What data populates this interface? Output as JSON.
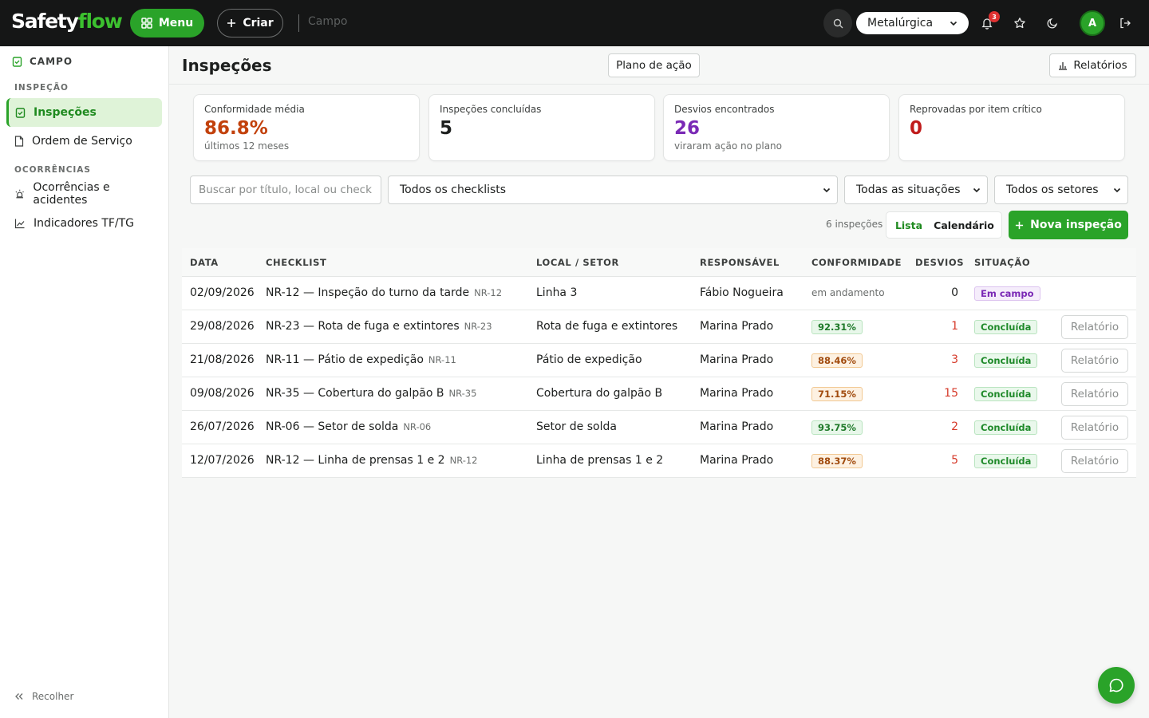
{
  "topbar": {
    "logo_part1": "Safety",
    "logo_part2": "flow",
    "menu_label": "Menu",
    "create_label": "Criar",
    "breadcrumb": "Campo",
    "company_select": "Metalúrgica",
    "notification_count": "3",
    "avatar_initial": "A"
  },
  "sidebar": {
    "header": "CAMPO",
    "section_inspecao": "INSPEÇÃO",
    "item_inspecoes": "Inspeções",
    "item_ordem": "Ordem de Serviço",
    "section_ocorrencias": "OCORRÊNCIAS",
    "item_ocorrencias": "Ocorrências e acidentes",
    "item_indicadores": "Indicadores TF/TG",
    "collapse": "Recolher"
  },
  "header": {
    "title": "Inspeções",
    "plan_button": "Plano de ação",
    "reports_button": "Relatórios"
  },
  "cards": [
    {
      "label": "Conformidade média",
      "value": "86.8%",
      "sub": "últimos 12 meses",
      "color": "#c2410c"
    },
    {
      "label": "Inspeções concluídas",
      "value": "5",
      "sub": "",
      "color": "#1d1f1e"
    },
    {
      "label": "Desvios encontrados",
      "value": "26",
      "sub": "viraram ação no plano",
      "color": "#7a29b5"
    },
    {
      "label": "Reprovadas por item crítico",
      "value": "0",
      "sub": "",
      "color": "#c01c1c"
    }
  ],
  "filters": {
    "search_placeholder": "Buscar por título, local ou checklist",
    "checklist": "Todos os checklists",
    "status": "Todas as situações",
    "sector": "Todos os setores"
  },
  "toolbar": {
    "count": "6 inspeções",
    "view_list": "Lista",
    "view_calendar": "Calendário",
    "new_button": "Nova inspeção"
  },
  "table": {
    "headers": [
      "DATA",
      "CHECKLIST",
      "LOCAL / SETOR",
      "RESPONSÁVEL",
      "CONFORMIDADE",
      "DESVIOS",
      "SITUAÇÃO"
    ],
    "report_label": "Relatório",
    "rows": [
      {
        "date": "02/09/2026",
        "checklist": "NR-12 — Inspeção do turno da tarde",
        "nr": "NR-12",
        "local": "Linha 3",
        "resp": "Fábio Nogueira",
        "conf": "em andamento",
        "conf_type": "text",
        "dev": "0",
        "dev_color": "#1d1f1e",
        "status": "Em campo",
        "status_type": "field",
        "report": false
      },
      {
        "date": "29/08/2026",
        "checklist": "NR-23 — Rota de fuga e extintores",
        "nr": "NR-23",
        "local": "Rota de fuga e extintores",
        "resp": "Marina Prado",
        "conf": "92.31%",
        "conf_type": "good",
        "dev": "1",
        "dev_color": "#d63a2a",
        "status": "Concluída",
        "status_type": "done",
        "report": true
      },
      {
        "date": "21/08/2026",
        "checklist": "NR-11 — Pátio de expedição",
        "nr": "NR-11",
        "local": "Pátio de expedição",
        "resp": "Marina Prado",
        "conf": "88.46%",
        "conf_type": "mid",
        "dev": "3",
        "dev_color": "#d63a2a",
        "status": "Concluída",
        "status_type": "done",
        "report": true
      },
      {
        "date": "09/08/2026",
        "checklist": "NR-35 — Cobertura do galpão B",
        "nr": "NR-35",
        "local": "Cobertura do galpão B",
        "resp": "Marina Prado",
        "conf": "71.15%",
        "conf_type": "mid",
        "dev": "15",
        "dev_color": "#d63a2a",
        "status": "Concluída",
        "status_type": "done",
        "report": true
      },
      {
        "date": "26/07/2026",
        "checklist": "NR-06 — Setor de solda",
        "nr": "NR-06",
        "local": "Setor de solda",
        "resp": "Marina Prado",
        "conf": "93.75%",
        "conf_type": "good",
        "dev": "2",
        "dev_color": "#d63a2a",
        "status": "Concluída",
        "status_type": "done",
        "report": true
      },
      {
        "date": "12/07/2026",
        "checklist": "NR-12 — Linha de prensas 1 e 2",
        "nr": "NR-12",
        "local": "Linha de prensas 1 e 2",
        "resp": "Marina Prado",
        "conf": "88.37%",
        "conf_type": "mid",
        "dev": "5",
        "dev_color": "#d63a2a",
        "status": "Concluída",
        "status_type": "done",
        "report": true
      }
    ]
  },
  "icons": {
    "menu": "grid-icon",
    "create": "plus-icon",
    "search": "search-icon",
    "bell": "bell-icon",
    "star": "star-icon",
    "theme": "moon-icon",
    "logout": "logout-icon",
    "chat": "chat-icon"
  }
}
